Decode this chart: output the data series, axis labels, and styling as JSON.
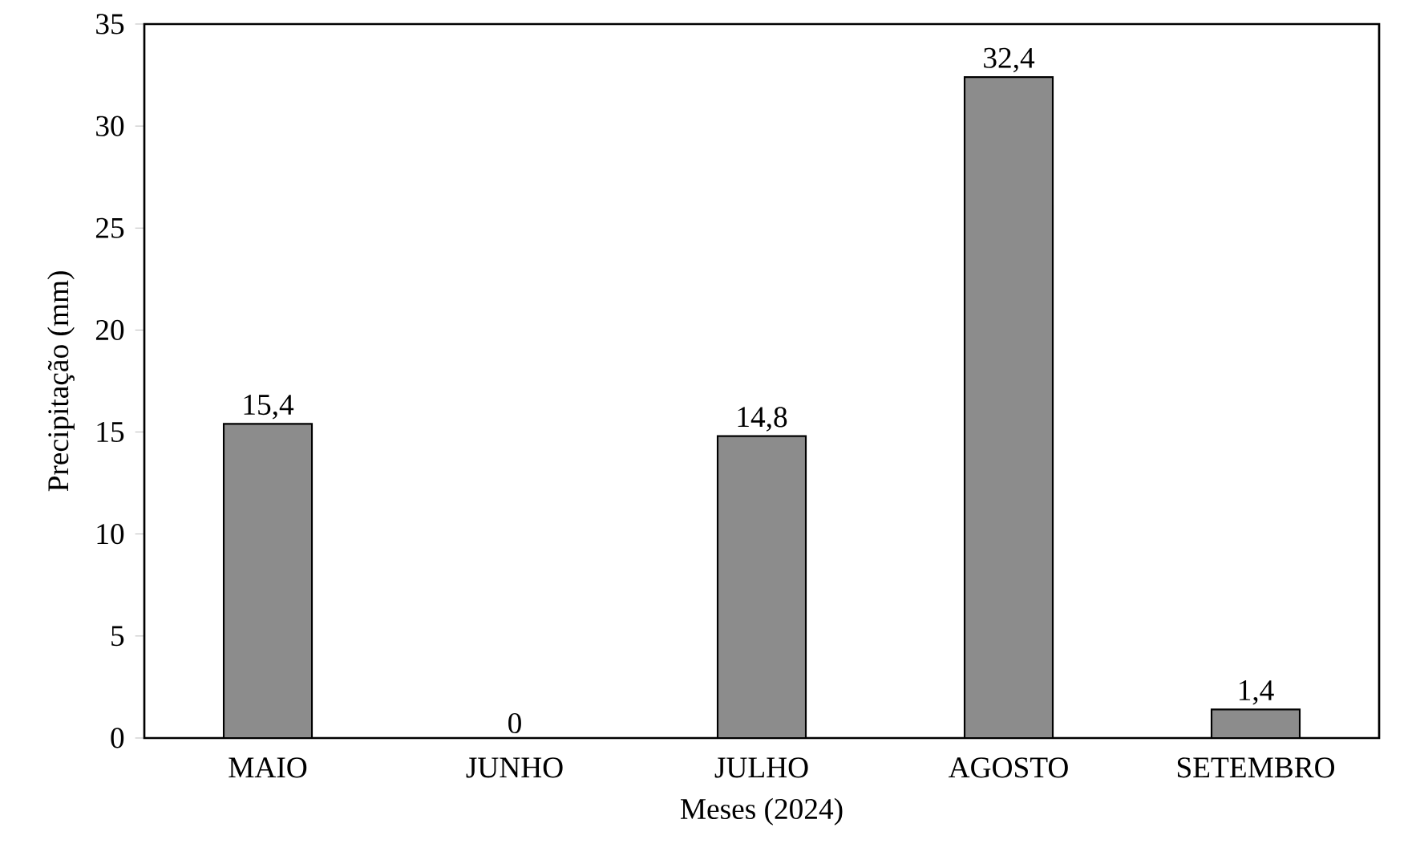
{
  "chart_data": {
    "type": "bar",
    "xlabel": "Meses (2024)",
    "ylabel": "Precipitação (mm)",
    "categories": [
      "MAIO",
      "JUNHO",
      "JULHO",
      "AGOSTO",
      "SETEMBRO"
    ],
    "values": [
      15.4,
      0,
      14.8,
      32.4,
      1.4
    ],
    "value_labels": [
      "15,4",
      "0",
      "14,8",
      "32,4",
      "1,4"
    ],
    "color": "#8c8c8c",
    "ylim": [
      0,
      35
    ],
    "yticks": [
      0,
      5,
      10,
      15,
      20,
      25,
      30,
      35
    ],
    "grid": false
  }
}
